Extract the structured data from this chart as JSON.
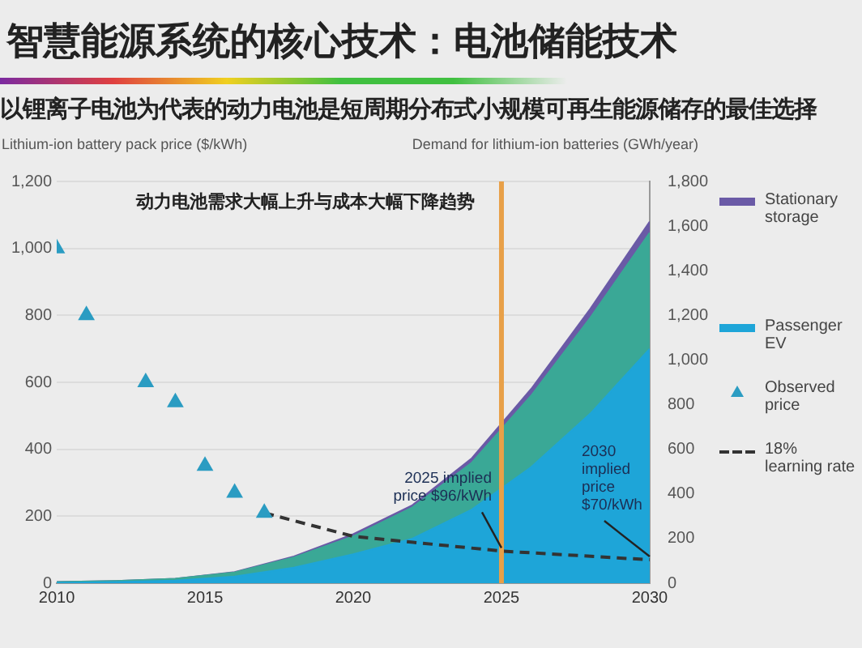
{
  "chart_data": {
    "type": "area",
    "title": "智慧能源系统的核心技术：电池储能技术",
    "subtitle": "以锂离子电池为代表的动力电池是短周期分布式小规模可再生能源储存的最佳选择",
    "ylabel": "Lithium-ion battery pack price ($/kWh)",
    "y2label": "Demand for lithium-ion batteries (GWh/year)",
    "annotations": [
      "动力电池需求大幅上升与成本大幅下降趋势",
      {
        "text": "2025 implied price $96/kWh",
        "x": 2025,
        "y": 96
      },
      {
        "text": "2030 implied price $70/kWh",
        "x": 2030,
        "y": 70
      }
    ],
    "stacked": true,
    "series": [
      {
        "name": "Passenger EV",
        "axis": "y2",
        "color": "#1ea5d8",
        "x": [
          2010,
          2012,
          2014,
          2016,
          2018,
          2020,
          2022,
          2024,
          2026,
          2028,
          2030
        ],
        "values": [
          2,
          5,
          12,
          30,
          70,
          130,
          200,
          330,
          520,
          760,
          1050
        ]
      },
      {
        "axis": "y2",
        "color": "#3aa896",
        "x": [
          2010,
          2012,
          2014,
          2016,
          2018,
          2020,
          2022,
          2024,
          2026,
          2028,
          2030
        ],
        "values": [
          3,
          5,
          8,
          18,
          45,
          80,
          140,
          210,
          320,
          430,
          520
        ]
      },
      {
        "name": "Stationary storage",
        "axis": "y2",
        "color": "#6a5aa6",
        "x": [
          2010,
          2012,
          2014,
          2016,
          2018,
          2020,
          2022,
          2024,
          2026,
          2028,
          2030
        ],
        "values": [
          0,
          0,
          0,
          2,
          5,
          10,
          10,
          20,
          30,
          40,
          50
        ]
      },
      {
        "name": "Observed price",
        "type": "scatter",
        "marker": "triangle",
        "color": "#2b9cc2",
        "x": [
          2010,
          2011,
          2012,
          2013,
          2014,
          2015,
          2016,
          2017
        ],
        "values": [
          1000,
          800,
          null,
          600,
          540,
          350,
          270,
          210
        ]
      },
      {
        "name": "18% learning rate",
        "type": "line",
        "marker": "none",
        "line_style": "dashed",
        "color": "#333333",
        "x": [
          2017,
          2020,
          2025,
          2030
        ],
        "values": [
          210,
          140,
          96,
          70
        ]
      }
    ],
    "xlim": [
      2010,
      2030
    ],
    "xticks": [
      2010,
      2015,
      2020,
      2025,
      2030
    ],
    "ylim": [
      0,
      1200
    ],
    "yticks": [
      0,
      200,
      400,
      600,
      800,
      {
        "value": 1000,
        "label": "1,000"
      },
      {
        "value": 1200,
        "label": "1,200"
      }
    ],
    "y2lim": [
      0,
      1800
    ],
    "y2ticks": [
      0,
      200,
      400,
      600,
      800,
      {
        "value": 1000,
        "label": "1,000"
      },
      {
        "value": 1200,
        "label": "1,200"
      },
      {
        "value": 1400,
        "label": "1,400"
      },
      {
        "value": 1600,
        "label": "1,600"
      },
      {
        "value": 1800,
        "label": "1,800"
      }
    ],
    "ref_lines": [
      {
        "axis": "x",
        "value": 2025,
        "color": "#e8a048"
      }
    ],
    "grid": "y",
    "legend": "right"
  }
}
